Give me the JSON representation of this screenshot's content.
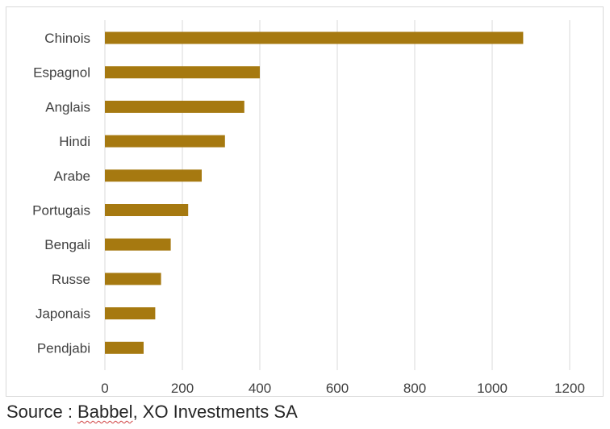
{
  "chart_data": {
    "type": "bar",
    "orientation": "horizontal",
    "categories": [
      "Chinois",
      "Espagnol",
      "Anglais",
      "Hindi",
      "Arabe",
      "Portugais",
      "Bengali",
      "Russe",
      "Japonais",
      "Pendjabi"
    ],
    "values": [
      1080,
      400,
      360,
      310,
      250,
      215,
      170,
      145,
      130,
      100
    ],
    "xlim": [
      0,
      1200
    ],
    "xticks": [
      0,
      200,
      400,
      600,
      800,
      1000,
      1200
    ],
    "grid": "vertical",
    "legend": "none",
    "bar_color": "#a67910",
    "grid_color": "#d9d9d9"
  },
  "source": {
    "prefix": "Source : ",
    "name": "Babbel",
    "rest": ", XO Investments SA"
  }
}
